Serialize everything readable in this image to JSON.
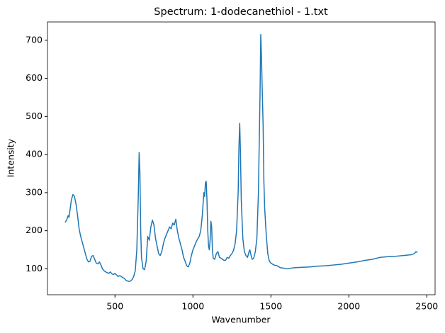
{
  "chart_data": {
    "type": "line",
    "title": "Spectrum: 1-dodecanethiol - 1.txt",
    "x_label": "Wavenumber",
    "y_label": "Intensity",
    "color": "#1f77b4",
    "x": [
      180,
      190,
      200,
      205,
      210,
      220,
      230,
      240,
      250,
      260,
      270,
      280,
      290,
      300,
      310,
      320,
      330,
      340,
      350,
      360,
      370,
      380,
      390,
      400,
      410,
      420,
      430,
      440,
      450,
      460,
      470,
      480,
      490,
      500,
      510,
      520,
      530,
      540,
      550,
      560,
      570,
      580,
      590,
      600,
      610,
      620,
      630,
      640,
      650,
      655,
      660,
      665,
      670,
      680,
      690,
      700,
      710,
      720,
      730,
      740,
      750,
      760,
      770,
      780,
      790,
      800,
      810,
      820,
      830,
      840,
      850,
      860,
      870,
      880,
      890,
      900,
      910,
      920,
      930,
      940,
      950,
      960,
      970,
      980,
      990,
      1000,
      1010,
      1020,
      1030,
      1040,
      1050,
      1060,
      1070,
      1075,
      1080,
      1085,
      1090,
      1095,
      1100,
      1105,
      1110,
      1115,
      1120,
      1125,
      1130,
      1140,
      1150,
      1160,
      1170,
      1180,
      1190,
      1200,
      1210,
      1220,
      1230,
      1240,
      1250,
      1260,
      1270,
      1280,
      1290,
      1295,
      1300,
      1305,
      1310,
      1320,
      1330,
      1340,
      1350,
      1360,
      1365,
      1370,
      1380,
      1390,
      1400,
      1410,
      1420,
      1430,
      1435,
      1440,
      1445,
      1450,
      1455,
      1460,
      1470,
      1480,
      1490,
      1500,
      1520,
      1540,
      1560,
      1580,
      1600,
      1650,
      1700,
      1750,
      1800,
      1850,
      1900,
      1950,
      2000,
      2050,
      2100,
      2150,
      2200,
      2250,
      2300,
      2350,
      2400,
      2420,
      2430,
      2440
    ],
    "values": [
      222,
      228,
      240,
      235,
      250,
      280,
      295,
      290,
      270,
      240,
      205,
      185,
      170,
      155,
      140,
      125,
      118,
      120,
      133,
      135,
      125,
      115,
      113,
      118,
      110,
      100,
      95,
      92,
      90,
      88,
      92,
      87,
      85,
      88,
      84,
      80,
      82,
      80,
      77,
      75,
      70,
      68,
      67,
      68,
      72,
      80,
      95,
      150,
      300,
      405,
      350,
      200,
      130,
      100,
      98,
      120,
      185,
      175,
      210,
      228,
      215,
      180,
      160,
      140,
      135,
      145,
      165,
      180,
      190,
      200,
      210,
      205,
      220,
      215,
      230,
      200,
      180,
      165,
      150,
      130,
      120,
      108,
      105,
      115,
      135,
      150,
      160,
      170,
      178,
      185,
      200,
      240,
      300,
      290,
      325,
      330,
      280,
      200,
      160,
      150,
      175,
      225,
      210,
      150,
      128,
      125,
      140,
      145,
      130,
      128,
      125,
      122,
      123,
      130,
      128,
      135,
      140,
      148,
      165,
      200,
      300,
      420,
      482,
      400,
      280,
      180,
      145,
      135,
      130,
      145,
      150,
      140,
      125,
      128,
      145,
      180,
      300,
      550,
      715,
      650,
      560,
      480,
      330,
      260,
      190,
      140,
      120,
      115,
      110,
      108,
      103,
      102,
      100,
      103,
      104,
      105,
      107,
      108,
      110,
      112,
      115,
      118,
      122,
      125,
      130,
      132,
      133,
      135,
      137,
      140,
      145,
      143
    ],
    "xlim": [
      67,
      2553
    ],
    "ylim": [
      32,
      748
    ],
    "xticks": [
      500,
      1000,
      1500,
      2000,
      2500
    ],
    "yticks": [
      100,
      200,
      300,
      400,
      500,
      600,
      700
    ]
  }
}
